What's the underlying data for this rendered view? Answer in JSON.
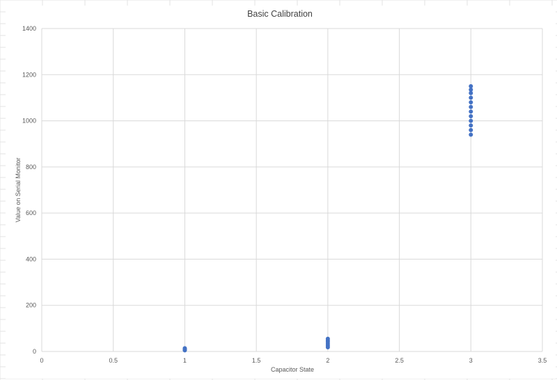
{
  "chart_data": {
    "type": "scatter",
    "title": "Basic Calibration",
    "xlabel": "Capacitor State",
    "ylabel": "Value on Serial Monitor",
    "xlim": [
      0,
      3.5
    ],
    "ylim": [
      0,
      1400
    ],
    "xticks": [
      0,
      0.5,
      1,
      1.5,
      2,
      2.5,
      3,
      3.5
    ],
    "xtick_labels": [
      "0",
      "0.5",
      "1",
      "1.5",
      "2",
      "2.5",
      "3",
      "3.5"
    ],
    "yticks": [
      0,
      200,
      400,
      600,
      800,
      1000,
      1200,
      1400
    ],
    "ytick_labels": [
      "0",
      "200",
      "400",
      "600",
      "800",
      "1000",
      "1200",
      "1400"
    ],
    "grid": true,
    "legend": "none",
    "series": [
      {
        "color": "#4472C4",
        "points": [
          {
            "x": 1,
            "y": 5
          },
          {
            "x": 1,
            "y": 8
          },
          {
            "x": 1,
            "y": 11
          },
          {
            "x": 1,
            "y": 14
          },
          {
            "x": 2,
            "y": 18
          },
          {
            "x": 2,
            "y": 25
          },
          {
            "x": 2,
            "y": 33
          },
          {
            "x": 2,
            "y": 41
          },
          {
            "x": 2,
            "y": 48
          },
          {
            "x": 2,
            "y": 55
          },
          {
            "x": 3,
            "y": 940
          },
          {
            "x": 3,
            "y": 960
          },
          {
            "x": 3,
            "y": 980
          },
          {
            "x": 3,
            "y": 1000
          },
          {
            "x": 3,
            "y": 1020
          },
          {
            "x": 3,
            "y": 1040
          },
          {
            "x": 3,
            "y": 1060
          },
          {
            "x": 3,
            "y": 1080
          },
          {
            "x": 3,
            "y": 1100
          },
          {
            "x": 3,
            "y": 1120
          },
          {
            "x": 3,
            "y": 1135
          },
          {
            "x": 3,
            "y": 1150
          }
        ]
      }
    ]
  }
}
